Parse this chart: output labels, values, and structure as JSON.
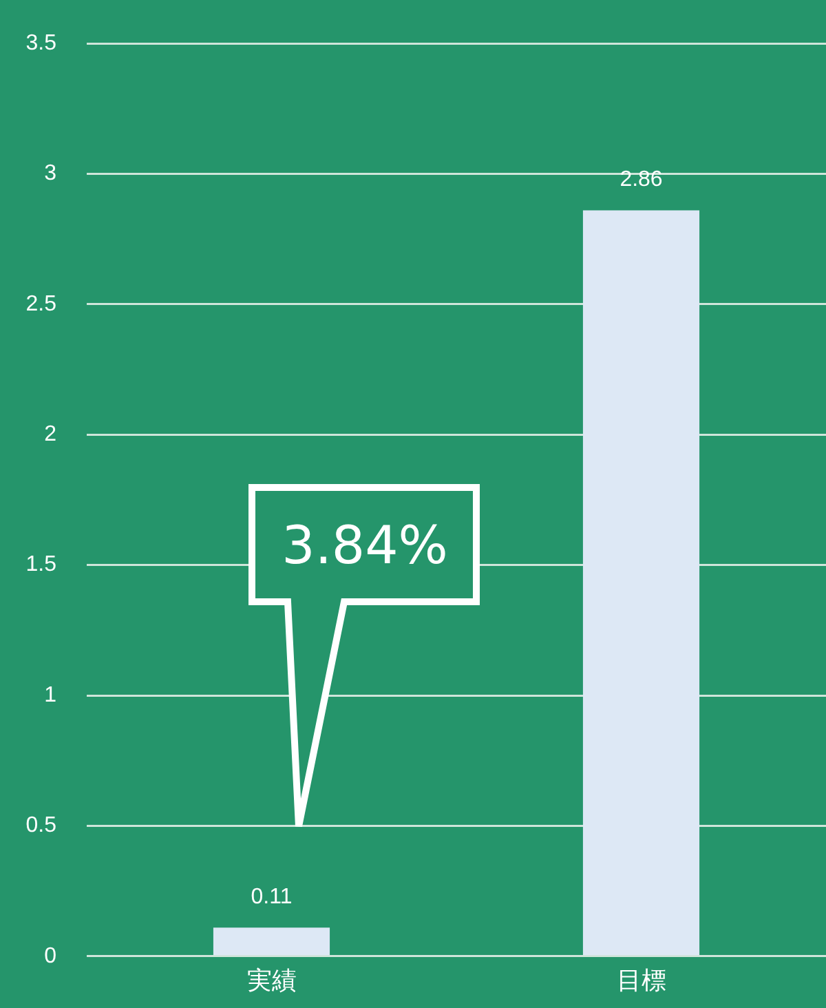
{
  "chart_data": {
    "type": "bar",
    "categories": [
      "実績",
      "目標"
    ],
    "values": [
      0.11,
      2.86
    ],
    "color": "#dde8f5",
    "ylim": [
      0,
      3.5
    ],
    "yticks": [
      0,
      0.5,
      1,
      1.5,
      2,
      2.5,
      3,
      3.5
    ],
    "grid": "y",
    "data_labels": true,
    "annotations": [
      "3.84%"
    ]
  }
}
